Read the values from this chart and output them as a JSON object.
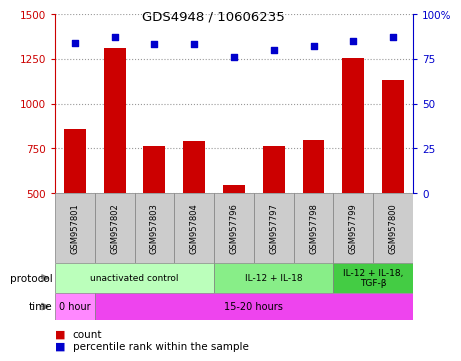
{
  "title": "GDS4948 / 10606235",
  "samples": [
    "GSM957801",
    "GSM957802",
    "GSM957803",
    "GSM957804",
    "GSM957796",
    "GSM957797",
    "GSM957798",
    "GSM957799",
    "GSM957800"
  ],
  "counts": [
    860,
    1310,
    760,
    790,
    545,
    760,
    795,
    1255,
    1130
  ],
  "percentile_ranks": [
    84,
    87,
    83,
    83,
    76,
    80,
    82,
    85,
    87
  ],
  "ylim_left": [
    500,
    1500
  ],
  "ylim_right": [
    0,
    100
  ],
  "yticks_left": [
    500,
    750,
    1000,
    1250,
    1500
  ],
  "yticks_right": [
    0,
    25,
    50,
    75,
    100
  ],
  "bar_color": "#cc0000",
  "dot_color": "#0000cc",
  "protocol_groups": [
    {
      "label": "unactivated control",
      "start": 0,
      "end": 4,
      "color": "#bbffbb"
    },
    {
      "label": "IL-12 + IL-18",
      "start": 4,
      "end": 7,
      "color": "#88ee88"
    },
    {
      "label": "IL-12 + IL-18,\nTGF-β",
      "start": 7,
      "end": 9,
      "color": "#44cc44"
    }
  ],
  "time_groups": [
    {
      "label": "0 hour",
      "start": 0,
      "end": 1,
      "color": "#ff88ff"
    },
    {
      "label": "15-20 hours",
      "start": 1,
      "end": 9,
      "color": "#ee44ee"
    }
  ],
  "legend_count_label": "count",
  "legend_pct_label": "percentile rank within the sample",
  "left_axis_color": "#cc0000",
  "right_axis_color": "#0000cc",
  "grid_color": "#999999",
  "sample_box_color": "#cccccc",
  "chart_bg": "#ffffff"
}
